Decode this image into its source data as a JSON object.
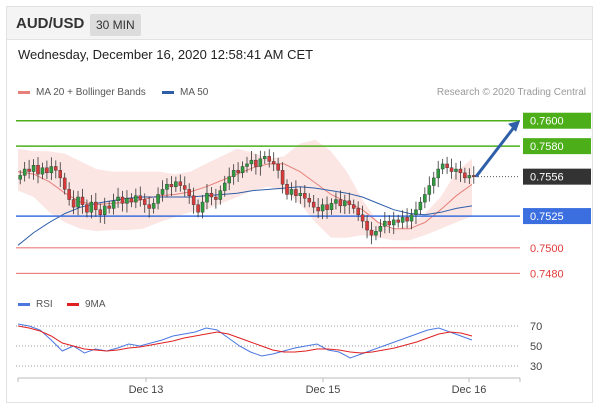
{
  "header": {
    "pair": "AUD/USD",
    "timeframe": "30 MIN"
  },
  "datetime": "Wednesday, December 16, 2020 12:58:41 AM CET",
  "legend": {
    "ma20": "MA 20 + Bollinger Bands",
    "ma50": "MA 50",
    "rsi": "RSI",
    "ma9": "9MA"
  },
  "credit": "Research © 2020 Trading Central",
  "colors": {
    "resistance": "#4caf1a",
    "support_line": "#3b6fe0",
    "support_red": "#e03a3a",
    "price": "#333333",
    "ma20": "#e8807a",
    "ma50": "#2f5fa8",
    "rsi": "#4a78e0",
    "ma9": "#e02020",
    "bull": "#2e9b3f",
    "bear": "#d83a3a"
  },
  "chart_data": [
    {
      "type": "candlestick",
      "title": "AUD/USD 30 MIN",
      "x_ticks": [
        "Dec 13",
        "Dec 15",
        "Dec 16"
      ],
      "ylim": [
        0.747,
        0.761
      ],
      "levels": [
        {
          "label": "0.7600",
          "value": 0.76,
          "kind": "resistance"
        },
        {
          "label": "0.7580",
          "value": 0.758,
          "kind": "resistance"
        },
        {
          "label": "0.7556",
          "value": 0.7556,
          "kind": "last"
        },
        {
          "label": "0.7525",
          "value": 0.7525,
          "kind": "support"
        },
        {
          "label": "0.7500",
          "value": 0.75,
          "kind": "support_minor"
        },
        {
          "label": "0.7480",
          "value": 0.748,
          "kind": "support_minor"
        }
      ],
      "close": [
        0.7557,
        0.7562,
        0.756,
        0.7565,
        0.7558,
        0.7563,
        0.7559,
        0.7564,
        0.7561,
        0.7555,
        0.7546,
        0.7538,
        0.7532,
        0.754,
        0.7534,
        0.7528,
        0.7536,
        0.753,
        0.7526,
        0.7533,
        0.7531,
        0.7537,
        0.754,
        0.7535,
        0.7539,
        0.7536,
        0.7541,
        0.7538,
        0.7534,
        0.7531,
        0.7535,
        0.7542,
        0.7546,
        0.755,
        0.7548,
        0.7552,
        0.7549,
        0.7546,
        0.7541,
        0.7534,
        0.7528,
        0.7536,
        0.7543,
        0.754,
        0.7538,
        0.7545,
        0.7551,
        0.7556,
        0.7561,
        0.7559,
        0.7564,
        0.7566,
        0.7569,
        0.7564,
        0.757,
        0.7572,
        0.7568,
        0.7566,
        0.7561,
        0.755,
        0.7542,
        0.7546,
        0.7541,
        0.7543,
        0.7539,
        0.7536,
        0.7532,
        0.7529,
        0.7534,
        0.753,
        0.7535,
        0.7538,
        0.7533,
        0.7537,
        0.7534,
        0.7531,
        0.7526,
        0.7521,
        0.7514,
        0.751,
        0.7513,
        0.7517,
        0.7521,
        0.7518,
        0.7522,
        0.752,
        0.7524,
        0.7521,
        0.7526,
        0.753,
        0.7536,
        0.7542,
        0.7549,
        0.7555,
        0.7562,
        0.7566,
        0.7563,
        0.756,
        0.7562,
        0.7559,
        0.7555,
        0.7557,
        0.7556
      ],
      "bollinger_ma20": {
        "upper": [
          0.7578,
          0.7576,
          0.7576,
          0.7574,
          0.7568,
          0.7562,
          0.756,
          0.756,
          0.756,
          0.756,
          0.7558,
          0.756,
          0.7566,
          0.7572,
          0.7578,
          0.7575,
          0.757,
          0.7572,
          0.7582,
          0.7585,
          0.7576,
          0.756,
          0.7538,
          0.752,
          0.7515,
          0.7518,
          0.7527,
          0.754,
          0.756,
          0.757
        ],
        "middle": [
          0.756,
          0.7558,
          0.7552,
          0.7543,
          0.7536,
          0.7534,
          0.7535,
          0.7536,
          0.7538,
          0.7541,
          0.7542,
          0.7544,
          0.7548,
          0.7553,
          0.7558,
          0.7563,
          0.7566,
          0.7566,
          0.756,
          0.7551,
          0.7542,
          0.7536,
          0.753,
          0.752,
          0.7515,
          0.7515,
          0.752,
          0.753,
          0.7541,
          0.755
        ],
        "lower": [
          0.7545,
          0.754,
          0.7528,
          0.752,
          0.7515,
          0.7513,
          0.7514,
          0.7514,
          0.7515,
          0.752,
          0.7524,
          0.7528,
          0.753,
          0.7535,
          0.754,
          0.7545,
          0.7548,
          0.7545,
          0.7535,
          0.752,
          0.7508,
          0.7508,
          0.751,
          0.7508,
          0.7506,
          0.7506,
          0.751,
          0.7515,
          0.752,
          0.7525
        ]
      },
      "ma50": [
        0.7502,
        0.7512,
        0.752,
        0.7527,
        0.7532,
        0.7535,
        0.7537,
        0.7539,
        0.754,
        0.754,
        0.754,
        0.754,
        0.7541,
        0.7542,
        0.7543,
        0.7545,
        0.7546,
        0.7547,
        0.7548,
        0.7547,
        0.7545,
        0.7543,
        0.754,
        0.7535,
        0.753,
        0.7527,
        0.7526,
        0.7528,
        0.7531,
        0.7533
      ]
    },
    {
      "type": "line",
      "title": "RSI",
      "y_ticks": [
        "70",
        "50",
        "30"
      ],
      "ylim": [
        20,
        80
      ],
      "rsi": [
        72,
        70,
        66,
        56,
        45,
        50,
        43,
        47,
        45,
        48,
        52,
        50,
        53,
        56,
        60,
        62,
        64,
        68,
        66,
        58,
        50,
        44,
        40,
        42,
        45,
        48,
        50,
        52,
        46,
        44,
        38,
        42,
        46,
        50,
        54,
        58,
        62,
        66,
        68,
        64,
        60,
        56
      ],
      "ma9": [
        70,
        68,
        65,
        60,
        53,
        50,
        47,
        46,
        45,
        46,
        48,
        49,
        51,
        53,
        55,
        58,
        60,
        62,
        64,
        62,
        58,
        54,
        50,
        46,
        44,
        44,
        45,
        47,
        47,
        46,
        44,
        43,
        44,
        46,
        48,
        51,
        54,
        58,
        62,
        64,
        63,
        60
      ]
    }
  ]
}
